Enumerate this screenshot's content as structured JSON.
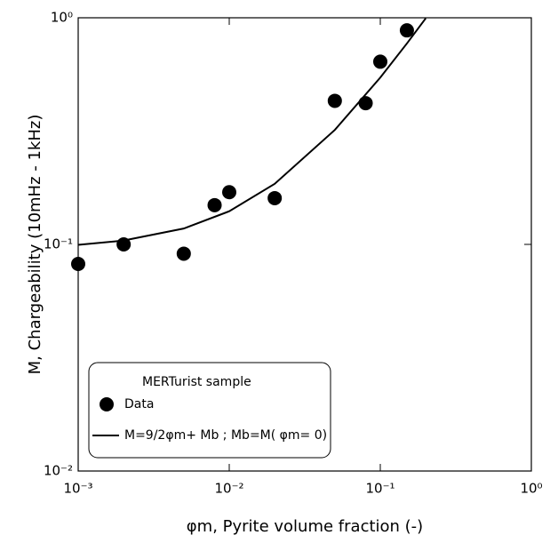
{
  "chart_data": {
    "type": "scatter",
    "xlabel": "φm, Pyrite volume fraction (-)",
    "ylabel": "M, Chargeability (10mHz - 1kHz)",
    "xscale": "log",
    "yscale": "log",
    "xlim": [
      0.001,
      1
    ],
    "ylim": [
      0.01,
      1
    ],
    "xticks": [
      {
        "value": 0.001,
        "label": "10⁻³"
      },
      {
        "value": 0.01,
        "label": "10⁻²"
      },
      {
        "value": 0.1,
        "label": "10⁻¹"
      },
      {
        "value": 1,
        "label": "10⁰"
      }
    ],
    "yticks": [
      {
        "value": 0.01,
        "label": "10⁻²"
      },
      {
        "value": 0.1,
        "label": "10⁻¹"
      },
      {
        "value": 1,
        "label": "10⁰"
      }
    ],
    "legend_title": "MERTurist sample",
    "series": [
      {
        "name": "Data",
        "type": "scatter",
        "color": "#000000",
        "x": [
          0.001,
          0.002,
          0.005,
          0.008,
          0.01,
          0.02,
          0.05,
          0.08,
          0.1,
          0.15
        ],
        "values": [
          0.082,
          0.1,
          0.091,
          0.149,
          0.17,
          0.16,
          0.43,
          0.42,
          0.64,
          0.88
        ]
      },
      {
        "name": "M=9/2φm+ Mb ; Mb=M( φm= 0)",
        "type": "line",
        "color": "#000000",
        "x": [
          0.001,
          0.002,
          0.005,
          0.01,
          0.02,
          0.05,
          0.1,
          0.15,
          0.2
        ],
        "values": [
          0.0995,
          0.104,
          0.1175,
          0.14,
          0.185,
          0.32,
          0.545,
          0.77,
          0.995
        ]
      }
    ]
  }
}
